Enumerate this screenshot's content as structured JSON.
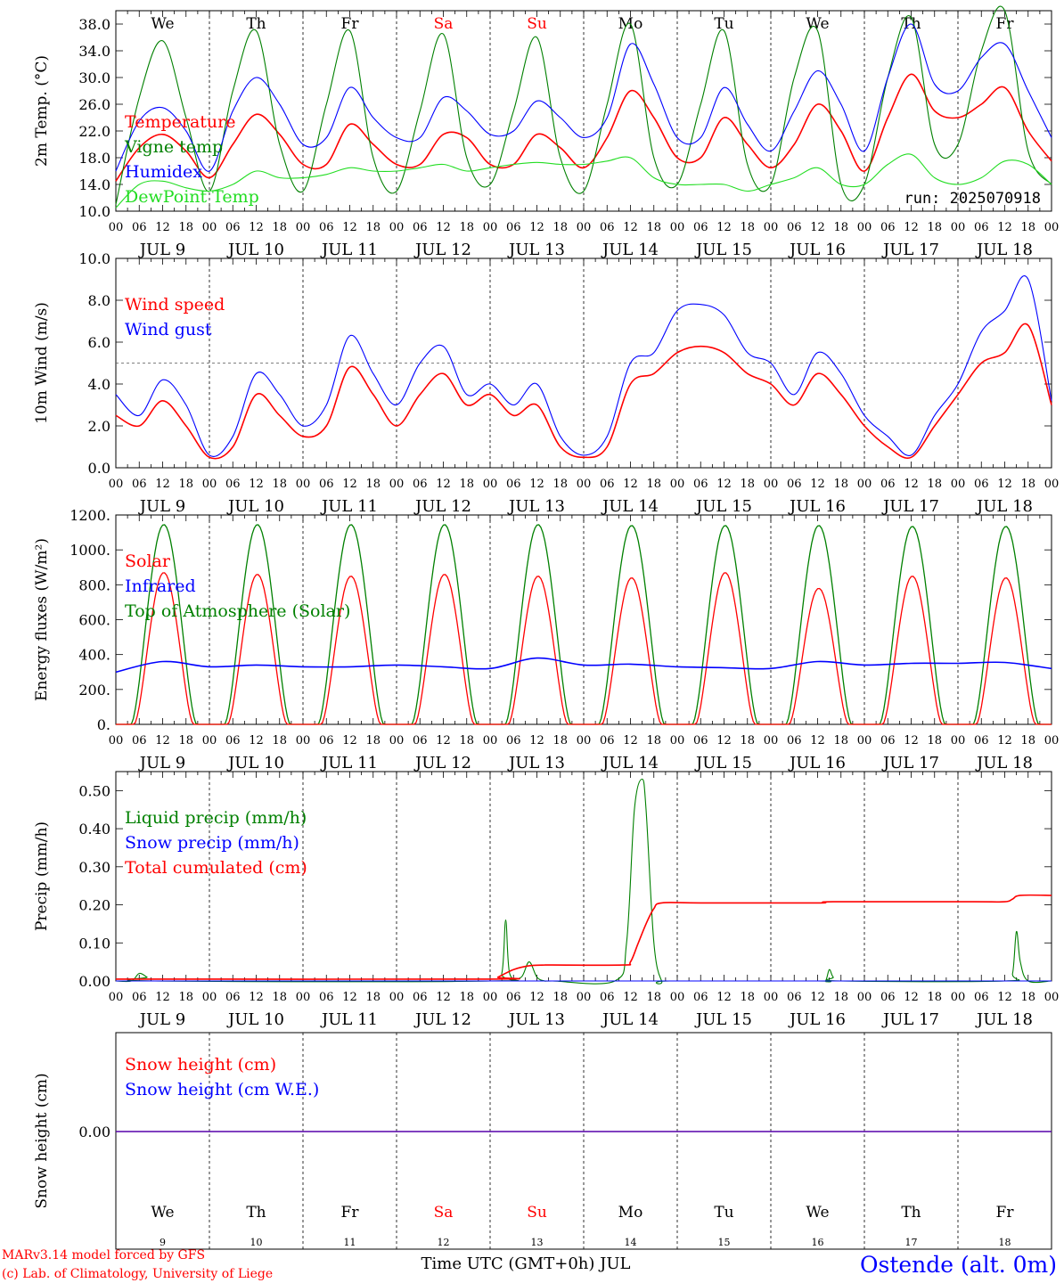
{
  "colors": {
    "red": "#ff0000",
    "green": "#008000",
    "blue": "#0000ff",
    "lightgreen": "#22dd22",
    "black": "#000000"
  },
  "weekdays": [
    "We",
    "Th",
    "Fr",
    "Sa",
    "Su",
    "Mo",
    "Tu",
    "We",
    "Th",
    "Fr"
  ],
  "weekend_indices": [
    3,
    4
  ],
  "day_numbers": [
    "9",
    "10",
    "11",
    "12",
    "13",
    "14",
    "15",
    "16",
    "17",
    "18"
  ],
  "date_labels": [
    "JUL  9",
    "JUL 10",
    "JUL 11",
    "JUL 12",
    "JUL 13",
    "JUL 14",
    "JUL 15",
    "JUL 16",
    "JUL 17",
    "JUL 18"
  ],
  "hour_labels": [
    "00",
    "06",
    "12",
    "18"
  ],
  "run_label": "run: 2025070918",
  "xaxis_title": "Time UTC (GMT+0h) JUL",
  "footer": {
    "line1": "MARv3.14 model forced by GFS",
    "line2": "(c) Lab. of Climatology, University of Liege"
  },
  "station": "Ostende (alt. 0m)",
  "chart_data": [
    {
      "type": "line",
      "id": "temp",
      "ylabel": "2m Temp. (°C)",
      "ylim": [
        10,
        40
      ],
      "yticks": [
        10,
        14,
        18,
        22,
        26,
        30,
        34,
        38
      ],
      "ytick_labels": [
        "10.0",
        "14.0",
        "18.0",
        "22.0",
        "26.0",
        "30.0",
        "34.0",
        "38.0"
      ],
      "x_hours": [
        0,
        6,
        12,
        18,
        24,
        30,
        36,
        42,
        48,
        54,
        60,
        66,
        72,
        78,
        84,
        90,
        96,
        102,
        108,
        114,
        120,
        126,
        132,
        138,
        144,
        150,
        156,
        162,
        168,
        174,
        180,
        186,
        192,
        198,
        204,
        210,
        216,
        222,
        228,
        234,
        240
      ],
      "series": [
        {
          "name": "Temperature",
          "color": "#ff0000",
          "values": [
            14.5,
            19.5,
            21.5,
            19,
            15,
            20,
            24.5,
            21.5,
            17,
            17,
            23,
            20,
            17,
            17,
            21.5,
            21,
            17,
            17,
            21.5,
            19.5,
            16.5,
            21,
            28,
            24,
            18,
            18,
            24,
            20,
            16.5,
            20,
            26,
            22,
            16,
            24,
            30.5,
            25,
            24,
            26,
            28.5,
            22,
            17.5
          ]
        },
        {
          "name": "Vigne temp",
          "color": "#008000",
          "values": [
            11,
            27,
            35.5,
            24,
            13,
            28,
            37,
            20,
            13,
            26,
            37,
            18,
            13,
            25,
            36.5,
            18,
            14,
            25,
            36,
            18,
            13,
            26,
            38,
            18,
            14,
            26,
            37,
            17,
            14,
            30,
            37,
            14,
            14,
            30,
            39,
            20,
            20,
            34,
            40,
            19,
            14
          ]
        },
        {
          "name": "Humidex",
          "color": "#0000ff",
          "values": [
            16,
            23.5,
            25.5,
            22,
            16,
            25,
            30,
            26,
            20,
            21,
            28.5,
            24,
            21,
            21,
            27,
            25,
            21.5,
            22,
            26.5,
            24,
            21,
            24,
            35,
            29,
            21,
            21,
            28.5,
            23,
            19,
            25,
            31,
            26,
            19,
            30,
            38,
            29,
            28,
            33,
            35,
            28,
            21
          ]
        },
        {
          "name": "DewPoint Temp",
          "color": "#22dd22",
          "values": [
            10.5,
            14,
            14.5,
            13.5,
            13,
            14,
            16,
            15,
            15,
            15.5,
            16.5,
            16,
            16,
            16.5,
            17,
            16,
            16.5,
            17,
            17.3,
            17,
            17,
            17.5,
            18,
            15,
            14,
            14,
            14,
            13,
            14,
            15,
            16.5,
            14,
            14,
            17,
            18.5,
            15,
            14,
            15,
            17.5,
            17,
            14
          ]
        }
      ],
      "legend": [
        "Temperature",
        "Vigne temp",
        "Humidex",
        "DewPoint Temp"
      ]
    },
    {
      "type": "line",
      "id": "wind",
      "ylabel": "10m Wind (m/s)",
      "ylim": [
        0,
        10
      ],
      "yticks": [
        0,
        2,
        4,
        6,
        8,
        10
      ],
      "ytick_labels": [
        "0.0",
        "2.0",
        "4.0",
        "6.0",
        "8.0",
        "10.0"
      ],
      "hline": 5,
      "x_hours": [
        0,
        6,
        12,
        18,
        24,
        30,
        36,
        42,
        48,
        54,
        60,
        66,
        72,
        78,
        84,
        90,
        96,
        102,
        108,
        114,
        120,
        126,
        132,
        138,
        144,
        150,
        156,
        162,
        168,
        174,
        180,
        186,
        192,
        198,
        204,
        210,
        216,
        222,
        228,
        234,
        240
      ],
      "series": [
        {
          "name": "Wind speed",
          "color": "#ff0000",
          "values": [
            2.5,
            2,
            3.2,
            2,
            0.5,
            1,
            3.5,
            2.5,
            1.5,
            2,
            4.8,
            3.5,
            2,
            3.5,
            4.5,
            3,
            3.5,
            2.5,
            3,
            1,
            0.5,
            1,
            4,
            4.5,
            5.5,
            5.8,
            5.5,
            4.5,
            4,
            3,
            4.5,
            3.5,
            2,
            1,
            0.5,
            2,
            3.5,
            5,
            5.5,
            6.8,
            3
          ]
        },
        {
          "name": "Wind gust",
          "color": "#0000ff",
          "values": [
            3.5,
            2.5,
            4.2,
            3,
            0.6,
            1.5,
            4.5,
            3.5,
            2,
            3,
            6.3,
            4.5,
            3,
            5,
            5.8,
            3.5,
            4,
            3,
            4,
            1.5,
            0.6,
            1.5,
            5,
            5.5,
            7.5,
            7.8,
            7.3,
            5.5,
            5,
            3.5,
            5.5,
            4.5,
            2.5,
            1.5,
            0.6,
            2.5,
            4,
            6.5,
            7.5,
            9,
            3.2
          ]
        }
      ],
      "legend": [
        "Wind speed",
        "Wind gust"
      ]
    },
    {
      "type": "line",
      "id": "energy",
      "ylabel": "Energy fluxes (W/m²)",
      "ylim": [
        0,
        1200
      ],
      "yticks": [
        0,
        200,
        400,
        600,
        800,
        1000,
        1200
      ],
      "ytick_labels": [
        "0.",
        "200.",
        "400.",
        "600.",
        "800.",
        "1000.",
        "1200."
      ],
      "daily_peaks": {
        "Solar": [
          870,
          860,
          850,
          860,
          850,
          840,
          870,
          780,
          850,
          840
        ],
        "Top of Atmosphere (Solar)": [
          1145,
          1145,
          1145,
          1145,
          1145,
          1140,
          1140,
          1140,
          1135,
          1135
        ]
      },
      "series": [
        {
          "name": "Infrared",
          "color": "#0000ff",
          "x_hours": [
            0,
            12,
            24,
            36,
            48,
            60,
            72,
            84,
            96,
            108,
            120,
            132,
            144,
            156,
            168,
            180,
            192,
            204,
            216,
            228,
            240
          ],
          "values": [
            300,
            360,
            330,
            340,
            330,
            330,
            340,
            330,
            320,
            380,
            340,
            345,
            330,
            325,
            320,
            360,
            340,
            350,
            350,
            355,
            320
          ]
        }
      ],
      "legend": [
        "Solar",
        "Infrared",
        "Top of Atmosphere (Solar)"
      ]
    },
    {
      "type": "line",
      "id": "precip",
      "ylabel": "Precip (mm/h)",
      "ylim": [
        0,
        0.55
      ],
      "yticks": [
        0,
        0.1,
        0.2,
        0.3,
        0.4,
        0.5
      ],
      "ytick_labels": [
        "0.00",
        "0.10",
        "0.20",
        "0.30",
        "0.40",
        "0.50"
      ],
      "series": [
        {
          "name": "Liquid precip (mm/h)",
          "color": "#008000",
          "x_hours": [
            0,
            4,
            6,
            8,
            10,
            96,
            99,
            100,
            101,
            104,
            106,
            108,
            110,
            112,
            128,
            131,
            133,
            135,
            136,
            138,
            140,
            142,
            180,
            182,
            183,
            184,
            186,
            228,
            230,
            231,
            232,
            234,
            240
          ],
          "values": [
            0,
            0,
            0.02,
            0.01,
            0,
            0,
            0.02,
            0.16,
            0.02,
            0.01,
            0.05,
            0.01,
            0,
            0,
            0,
            0.1,
            0.45,
            0.53,
            0.45,
            0.1,
            0,
            0,
            0,
            0,
            0.03,
            0.01,
            0,
            0,
            0.02,
            0.13,
            0.05,
            0,
            0
          ]
        },
        {
          "name": "Snow precip (mm/h)",
          "color": "#0000ff",
          "x_hours": [
            0,
            240
          ],
          "values": [
            0,
            0
          ]
        },
        {
          "name": "Total cumulated (cm)",
          "color": "#ff0000",
          "x_hours": [
            0,
            96,
            98,
            102,
            106,
            110,
            112,
            130,
            132,
            134,
            136,
            138,
            140,
            150,
            180,
            184,
            220,
            228,
            230,
            232,
            240
          ],
          "values": [
            0.005,
            0.005,
            0.01,
            0.03,
            0.04,
            0.042,
            0.042,
            0.042,
            0.05,
            0.1,
            0.15,
            0.19,
            0.205,
            0.205,
            0.205,
            0.208,
            0.208,
            0.208,
            0.215,
            0.225,
            0.225
          ]
        }
      ],
      "legend": [
        "Liquid precip (mm/h)",
        "Snow precip (mm/h)",
        "Total cumulated (cm)"
      ]
    },
    {
      "type": "line",
      "id": "snow",
      "ylabel": "Snow height (cm)",
      "yticks": [
        0
      ],
      "ytick_labels": [
        "0.00"
      ],
      "series": [
        {
          "name": "Snow height (cm)",
          "color": "#ff0000",
          "x_hours": [
            0,
            240
          ],
          "values": [
            0,
            0
          ]
        },
        {
          "name": "Snow height (cm W.E.)",
          "color": "#0000ff",
          "x_hours": [
            0,
            240
          ],
          "values": [
            0,
            0
          ]
        }
      ],
      "legend": [
        "Snow height (cm)",
        "Snow height (cm W.E.)"
      ]
    }
  ]
}
